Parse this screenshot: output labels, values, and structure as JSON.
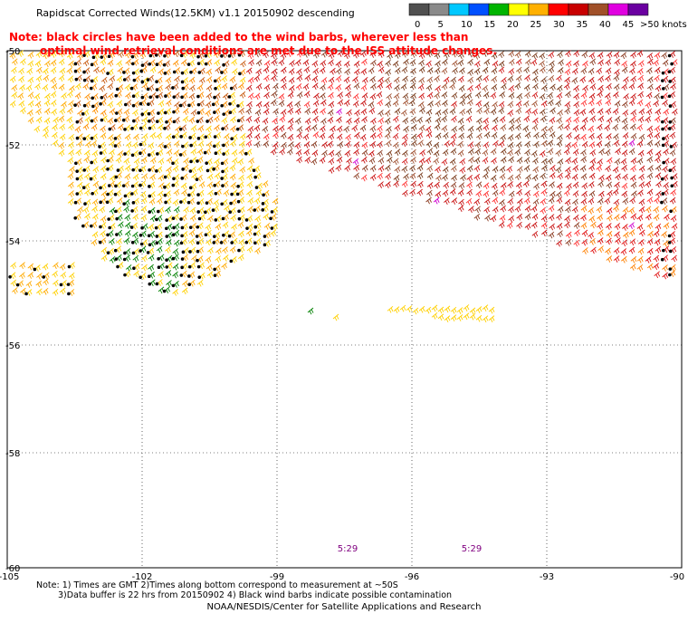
{
  "title": "Rapidscat Corrected Winds(12.5KM) v1.1 20150902 descending",
  "note": [
    "Note: black circles have been added to the wind barbs, wherever less than",
    "optimal wind retrieval conditions are met due to the ISS attitude changes."
  ],
  "legend": {
    "labels": [
      "0",
      "5",
      "10",
      "15",
      "20",
      "25",
      "30",
      "35",
      "40",
      "45",
      ">50 knots"
    ],
    "colors": [
      "#505050",
      "#8a8a8a",
      "#00c8ff",
      "#0050ff",
      "#00b400",
      "#ffff00",
      "#ffb000",
      "#ff0000",
      "#c80000",
      "#a05028",
      "#e000e0",
      "#6a00a0"
    ]
  },
  "map": {
    "lon_ticks": [
      "-105",
      "-102",
      "-99",
      "-96",
      "-93",
      "-90"
    ],
    "lat_ticks": [
      "-50",
      "-52",
      "-54",
      "-56",
      "-58",
      "-60"
    ],
    "grid": "dotted",
    "time_labels": [
      "5:29",
      "5:29"
    ],
    "time_color": "#800080"
  },
  "footer": {
    "line1": "Note: 1) Times are GMT 2)Times along bottom correspond to measurement at ~50S",
    "line2": "3)Data buffer is 22 hrs from 20150902 4) Black wind barbs indicate possible contamination",
    "credit": "NOAA/NESDIS/Center for Satellite Applications and Research"
  }
}
